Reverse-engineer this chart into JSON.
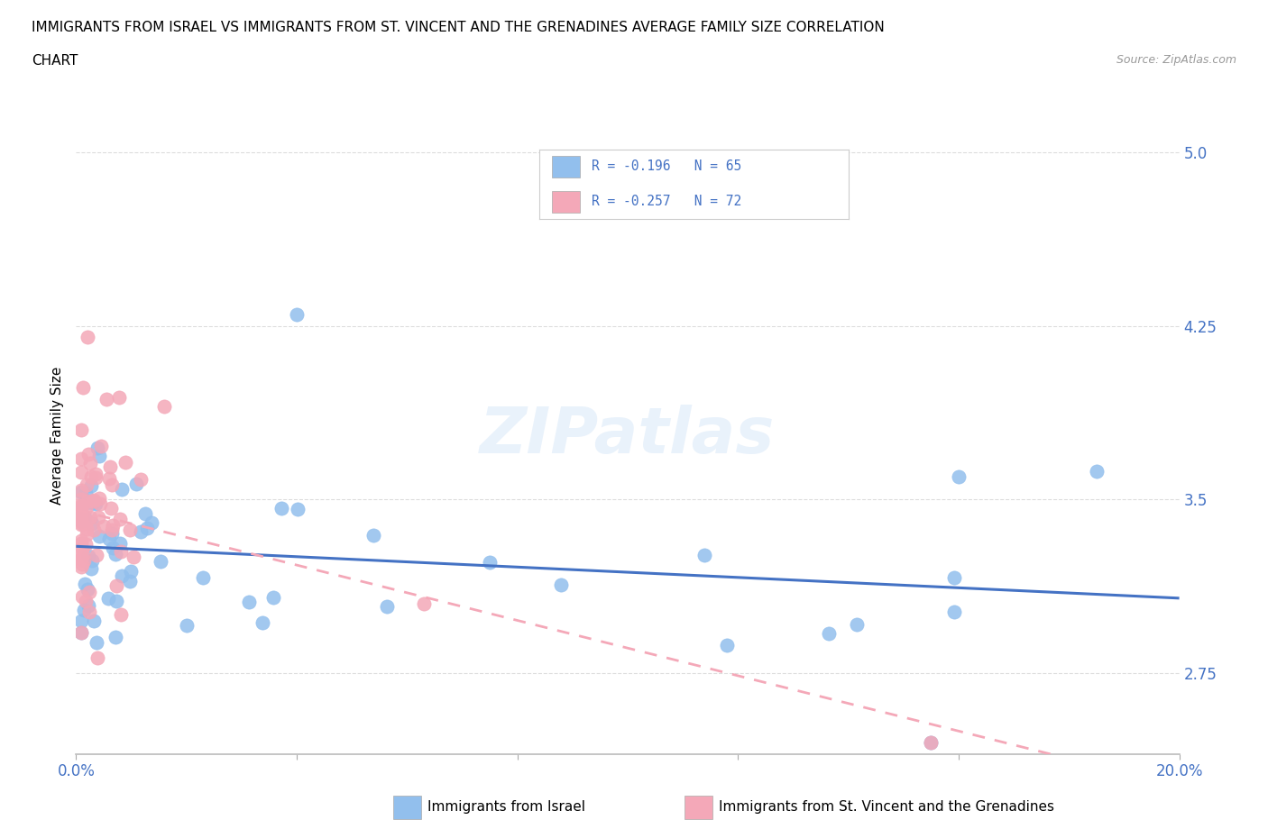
{
  "title_line1": "IMMIGRANTS FROM ISRAEL VS IMMIGRANTS FROM ST. VINCENT AND THE GRENADINES AVERAGE FAMILY SIZE CORRELATION",
  "title_line2": "CHART",
  "source_text": "Source: ZipAtlas.com",
  "ylabel": "Average Family Size",
  "xmin": 0.0,
  "xmax": 0.2,
  "ymin": 2.4,
  "ymax": 5.15,
  "yticks": [
    2.75,
    3.5,
    4.25,
    5.0
  ],
  "xticks": [
    0.0,
    0.04,
    0.08,
    0.12,
    0.16,
    0.2
  ],
  "xtick_labels": [
    "0.0%",
    "",
    "",
    "",
    "",
    "20.0%"
  ],
  "israel_color": "#92BFED",
  "israel_line_color": "#4472C4",
  "grenadines_color": "#F4A8B8",
  "grenadines_line_color": "#F4A8B8",
  "israel_R": -0.196,
  "israel_N": 65,
  "grenadines_R": -0.257,
  "grenadines_N": 72,
  "watermark": "ZIPatlas",
  "title_fontsize": 11,
  "ylabel_fontsize": 11,
  "tick_fontsize": 12,
  "legend_fontsize": 12
}
